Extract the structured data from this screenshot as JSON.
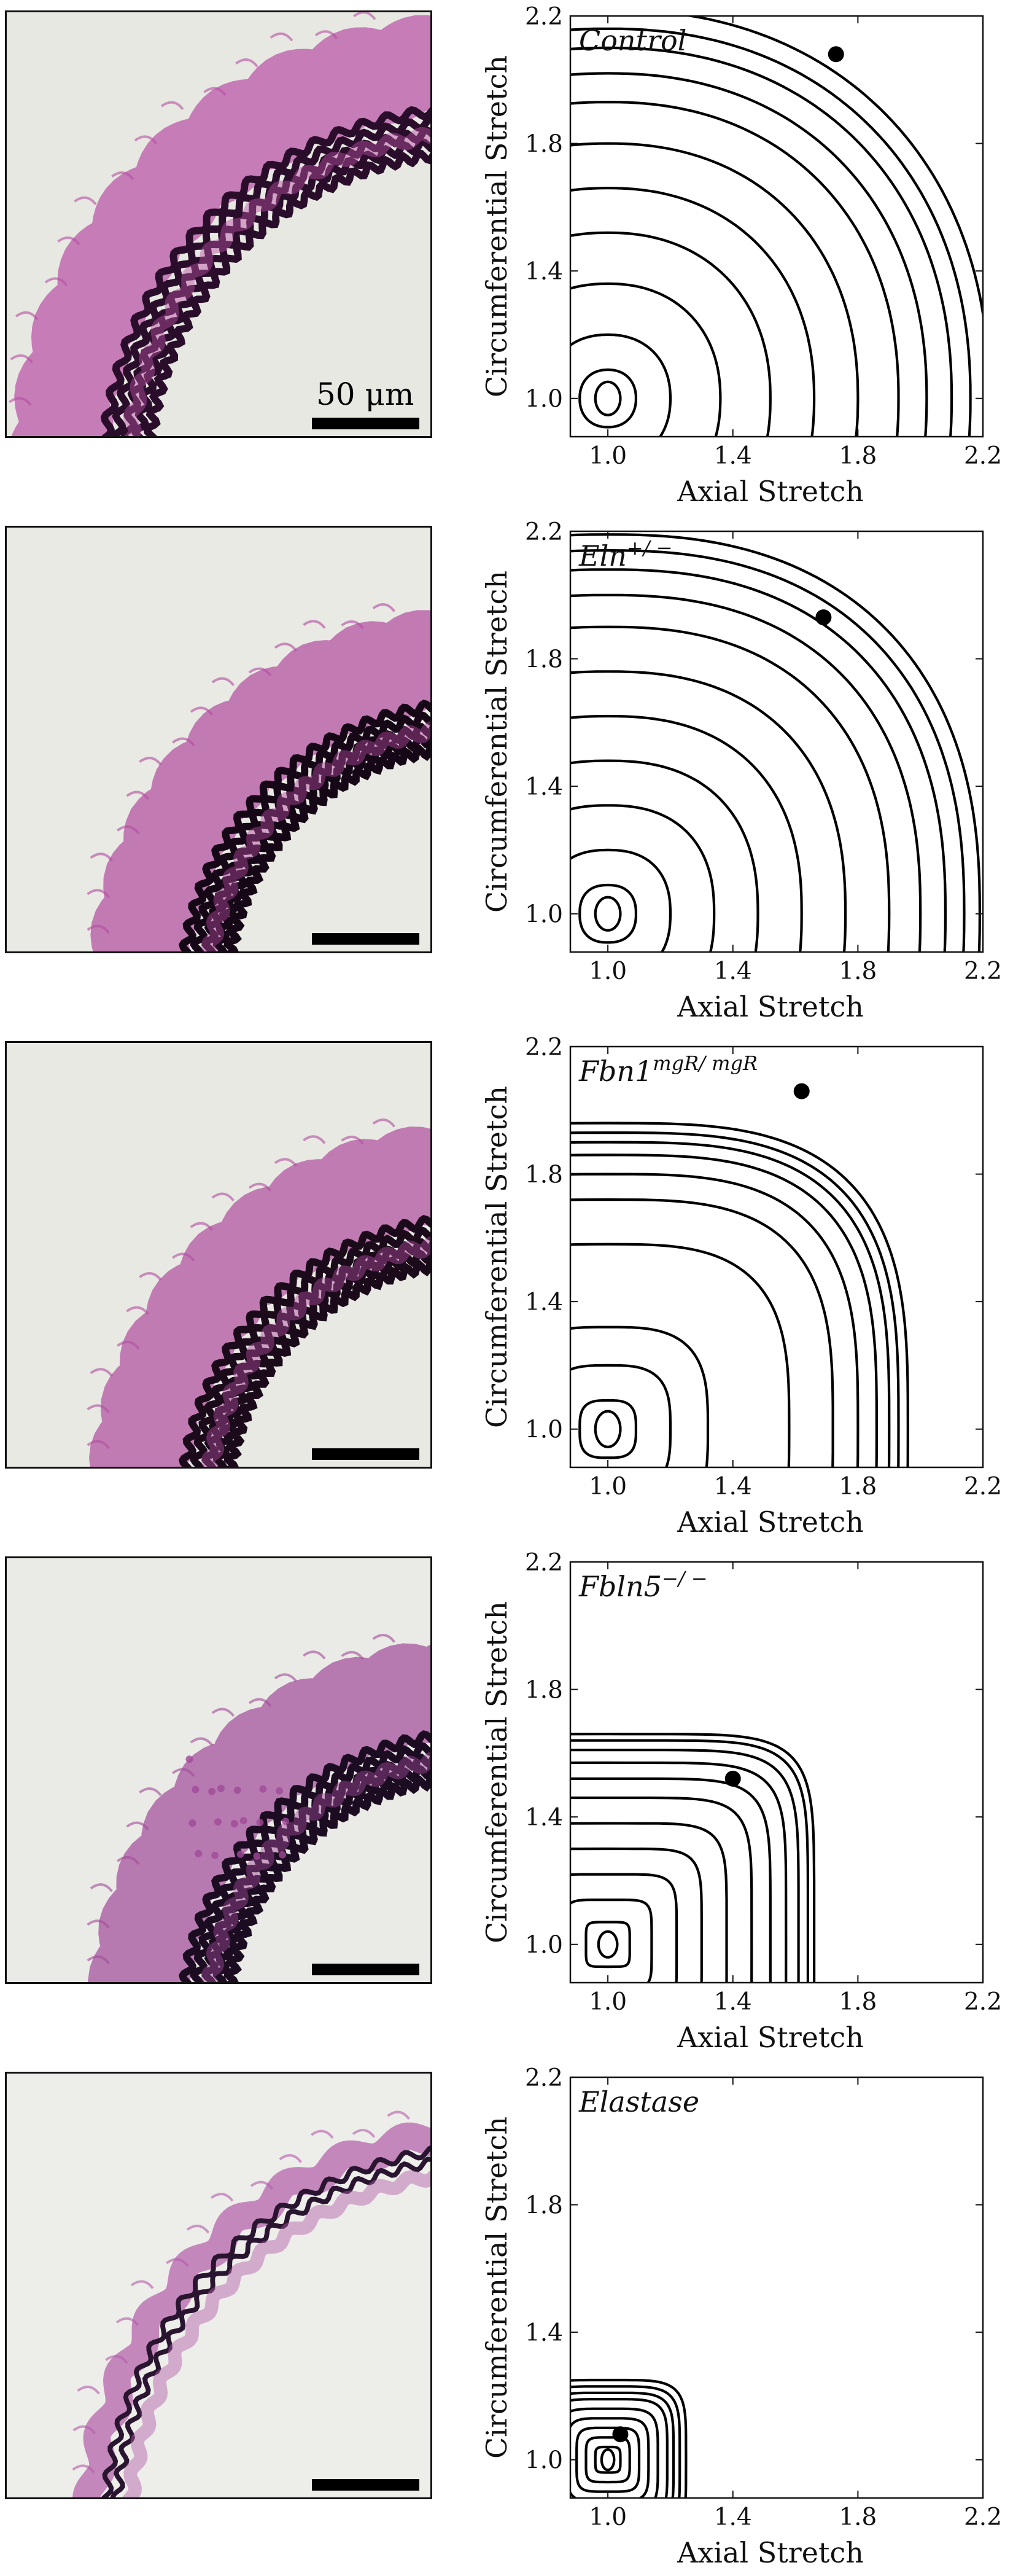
{
  "panels": [
    {
      "id": "control",
      "scalebar_label": "50 μm",
      "histology": {
        "tissue": "#b84fa4",
        "dark": "#2a0d2b",
        "background": "#e7e8e2"
      },
      "chart_data": {
        "type": "contour",
        "label_text": "Control",
        "label_superscript": "",
        "xlabel": "Axial Stretch",
        "ylabel": "Circumferential Stretch",
        "xlim": [
          0.88,
          2.2
        ],
        "ylim": [
          0.88,
          2.2
        ],
        "xticks": [
          1.0,
          1.4,
          1.8,
          2.2
        ],
        "yticks": [
          1.0,
          1.4,
          1.8,
          2.2
        ],
        "center": [
          1.0,
          1.0
        ],
        "shape_exponent": 2.2,
        "contour_x_intercepts": [
          1.04,
          1.09,
          1.2,
          1.36,
          1.52,
          1.66,
          1.8,
          1.93,
          2.02,
          2.1,
          2.16,
          2.22
        ],
        "ellipse_aspect": 1.3,
        "point": [
          1.73,
          2.08
        ]
      }
    },
    {
      "id": "eln",
      "scalebar_label": "",
      "histology": {
        "tissue": "#b14a9e",
        "dark": "#150716",
        "background": "#e9eae4"
      },
      "chart_data": {
        "type": "contour",
        "label_text": "Eln",
        "label_superscript": "+/ −",
        "xlabel": "Axial Stretch",
        "ylabel": "Circumferential Stretch",
        "xlim": [
          0.88,
          2.2
        ],
        "ylim": [
          0.88,
          2.2
        ],
        "xticks": [
          1.0,
          1.4,
          1.8,
          2.2
        ],
        "yticks": [
          1.0,
          1.4,
          1.8,
          2.2
        ],
        "center": [
          1.0,
          1.0
        ],
        "shape_exponent": 2.4,
        "contour_x_intercepts": [
          1.04,
          1.09,
          1.2,
          1.34,
          1.48,
          1.62,
          1.76,
          1.9,
          2.0,
          2.08,
          2.14,
          2.19
        ],
        "ellipse_aspect": 1.3,
        "point": [
          1.69,
          1.93
        ]
      }
    },
    {
      "id": "fbn1",
      "scalebar_label": "",
      "histology": {
        "tissue": "#b04c9e",
        "dark": "#1a0a1a",
        "background": "#e8e9e3"
      },
      "chart_data": {
        "type": "contour",
        "label_text": "Fbn1",
        "label_superscript": "mgR/ mgR",
        "xlabel": "Axial Stretch",
        "ylabel": "Circumferential Stretch",
        "xlim": [
          0.88,
          2.2
        ],
        "ylim": [
          0.88,
          2.2
        ],
        "xticks": [
          1.0,
          1.4,
          1.8,
          2.2
        ],
        "yticks": [
          1.0,
          1.4,
          1.8,
          2.2
        ],
        "center": [
          1.0,
          1.0
        ],
        "shape_exponent": 3.2,
        "contour_x_intercepts": [
          1.04,
          1.09,
          1.2,
          1.32,
          1.58,
          1.72,
          1.8,
          1.86,
          1.9,
          1.93,
          1.96
        ],
        "ellipse_aspect": 1.4,
        "point": [
          1.62,
          2.06
        ]
      }
    },
    {
      "id": "fbln5",
      "scalebar_label": "",
      "histology": {
        "tissue": "#a04a98",
        "dark": "#1c0c22",
        "background": "#eaebe6"
      },
      "chart_data": {
        "type": "contour",
        "label_text": "Fbln5",
        "label_superscript": "−/ −",
        "xlabel": "Axial Stretch",
        "ylabel": "Circumferential Stretch",
        "xlim": [
          0.88,
          2.2
        ],
        "ylim": [
          0.88,
          2.2
        ],
        "xticks": [
          1.0,
          1.4,
          1.8,
          2.2
        ],
        "yticks": [
          1.0,
          1.4,
          1.8,
          2.2
        ],
        "center": [
          1.0,
          1.0
        ],
        "shape_exponent": 6.0,
        "contour_x_intercepts": [
          1.03,
          1.07,
          1.14,
          1.22,
          1.3,
          1.38,
          1.46,
          1.52,
          1.57,
          1.61,
          1.64,
          1.66
        ],
        "ellipse_aspect": 1.35,
        "point": [
          1.4,
          1.52
        ]
      }
    },
    {
      "id": "elastase",
      "scalebar_label": "",
      "histology": {
        "tissue": "#b25ba8",
        "dark": "#2a1530",
        "background": "#ededea"
      },
      "chart_data": {
        "type": "contour",
        "label_text": "Elastase",
        "label_superscript": "",
        "xlabel": "Axial Stretch",
        "ylabel": "Circumferential Stretch",
        "xlim": [
          0.88,
          2.2
        ],
        "ylim": [
          0.88,
          2.2
        ],
        "xticks": [
          1.0,
          1.4,
          1.8,
          2.2
        ],
        "yticks": [
          1.0,
          1.4,
          1.8,
          2.2
        ],
        "center": [
          1.0,
          1.0
        ],
        "shape_exponent": 5.0,
        "contour_x_intercepts": [
          1.02,
          1.04,
          1.07,
          1.1,
          1.13,
          1.16,
          1.19,
          1.21,
          1.23,
          1.25
        ],
        "ellipse_aspect": 1.6,
        "point": [
          1.04,
          1.08
        ]
      }
    }
  ]
}
